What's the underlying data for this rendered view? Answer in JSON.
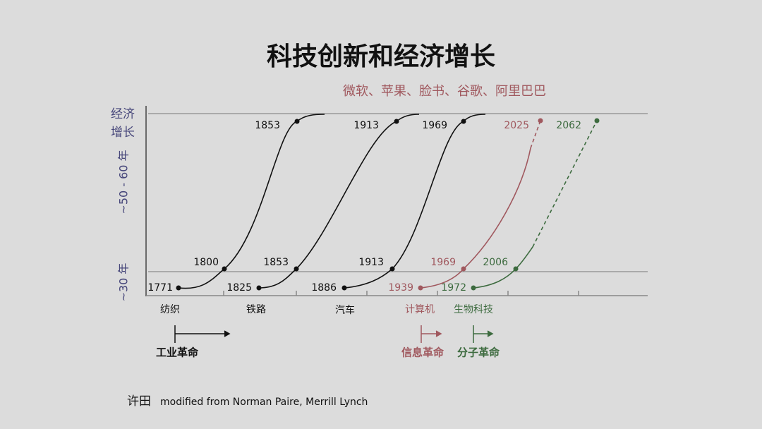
{
  "title": "科技创新和经济增长",
  "subtitle": "微软、苹果、脸书、谷歌、阿里巴巴",
  "y_axis": {
    "label_lines": [
      "经济",
      "增长"
    ],
    "long_span": "~50 - 60 年",
    "short_span": "~30 年"
  },
  "waves": [
    {
      "start": "1771",
      "mid": "1800",
      "end": "1853",
      "category": "纺织"
    },
    {
      "start": "1825",
      "mid": "1853",
      "end": "1913",
      "category": "铁路"
    },
    {
      "start": "1886",
      "mid": "1913",
      "end": "1969",
      "category": "汽车"
    },
    {
      "start": "1939",
      "mid": "1969",
      "end": "2025",
      "category": "计算机"
    },
    {
      "start": "1972",
      "mid": "2006",
      "end": "2062",
      "category": "生物科技"
    }
  ],
  "revolutions": [
    "工业革命",
    "信息革命",
    "分子革命"
  ],
  "source": {
    "author": "许田",
    "text": "modified from Norman Paire, Merrill Lynch"
  }
}
